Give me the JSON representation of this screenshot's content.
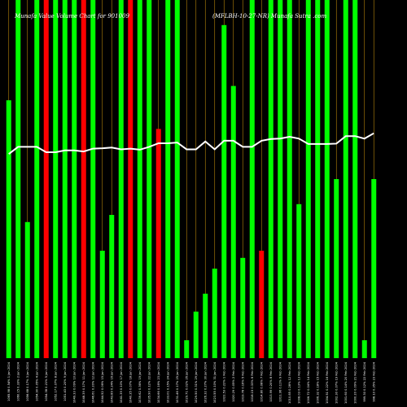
{
  "chart_data": {
    "type": "bar",
    "title_left": "Munafa Value Volume Chart for 901009",
    "title_right": "(MFLBH-10-27-NR) Munafa Sutra .com",
    "colors": {
      "background": "#000000",
      "up": "#00ff00",
      "down": "#ff0000",
      "gridline": "#b8860b",
      "line": "#ffffff",
      "text": "#ffffff"
    },
    "ylim": [
      0,
      100
    ],
    "line_ylim": [
      0,
      100
    ],
    "categories": [
      "1 Jan 2024",
      "2 Jan 2024",
      "3 Jan 2024",
      "4 Jan 2024",
      "5 Jan 2024",
      "8 Jan 2024",
      "9 Jan 2024",
      "10 Jan 2024",
      "11 Jan 2024",
      "12 Jan 2024",
      "15 Jan 2024",
      "16 Jan 2024",
      "17 Jan 2024",
      "18 Jan 2024",
      "19 Jan 2024",
      "22 Jan 2024",
      "23 Jan 2024",
      "24 Jan 2024",
      "25 Jan 2024",
      "26 Jan 2024",
      "29 Jan 2024",
      "30 Jan 2024",
      "31 Jan 2024",
      "1 Feb 2024",
      "2 Feb 2024",
      "5 Feb 2024",
      "6 Feb 2024",
      "7 Feb 2024",
      "8 Feb 2024",
      "9 Feb 2024",
      "12 Feb 2024",
      "13 Feb 2024",
      "14 Feb 2024",
      "15 Feb 2024",
      "16 Feb 2024",
      "19 Feb 2024",
      "20 Feb 2024",
      "21 Feb 2024",
      "22 Feb 2024",
      "23 Feb 2024"
    ],
    "tick_labels": [
      "1065.98 0.54%",
      "1060.15 0.33%",
      "1056.68 0.17%",
      "1054.90 0.05%",
      "1054.38 0.21%",
      "1052.17 0.07%",
      "1051.43 0.20%",
      "1049.33 0.09%",
      "1048.39 0.17%",
      "1046.61 0.20%",
      "1044.52 0.06%",
      "1043.89 0.24%",
      "1041.39 0.10%",
      "1040.35 0.07%",
      "1039.62 0.36%",
      "1035.90 0.12%",
      "1034.66 0.16%",
      "1033.01 0.15%",
      "1031.46 0.17%",
      "1029.71 0.02%",
      "1029.50 0.31%",
      "1026.32 0.27%",
      "1023.55 0.10%",
      "1022.53 0.22%",
      "1020.29 0.05%",
      "1019.78 0.16%",
      "1018.15 0.33%",
      "1014.80 0.08%",
      "1013.99 0.20%",
      "1011.96 0.11%",
      "1010.85 0.28%",
      "1008.03 0.13%",
      "1006.72 0.04%",
      "1006.32 0.18%",
      "1004.51 0.22%",
      "1002.30 0.07%",
      "1001.60 0.14%",
      "1000.20 0.09%",
      "999.30 0.12%",
      "998.10 0.35%"
    ],
    "series": [
      {
        "values": [
          72,
          100,
          38,
          100,
          100,
          100,
          100,
          100,
          100,
          100,
          30,
          40,
          100,
          100,
          100,
          100,
          64,
          100,
          100,
          5,
          13,
          18,
          25,
          93,
          76,
          28,
          100,
          30,
          100,
          100,
          100,
          43,
          100,
          100,
          100,
          50,
          100,
          100,
          5,
          50
        ],
        "directions": [
          "up",
          "up",
          "up",
          "up",
          "down",
          "up",
          "up",
          "up",
          "down",
          "up",
          "up",
          "up",
          "up",
          "down",
          "up",
          "up",
          "down",
          "up",
          "up",
          "up",
          "up",
          "up",
          "up",
          "up",
          "up",
          "up",
          "up",
          "down",
          "up",
          "up",
          "up",
          "up",
          "up",
          "up",
          "up",
          "up",
          "up",
          "up",
          "up",
          "up"
        ]
      }
    ],
    "line_values": [
      57,
      59,
      59,
      59,
      57.5,
      57.5,
      58,
      58,
      57.7,
      58.5,
      58.6,
      58.8,
      58.3,
      58.5,
      58.2,
      59,
      60,
      60,
      60.2,
      58.3,
      58.3,
      60.5,
      58.3,
      60.7,
      60.7,
      59,
      59,
      60.7,
      61.2,
      61.3,
      61.8,
      61.3,
      59.8,
      59.8,
      59.8,
      59.9,
      62,
      62,
      61.3,
      62.8
    ],
    "grid": true
  }
}
